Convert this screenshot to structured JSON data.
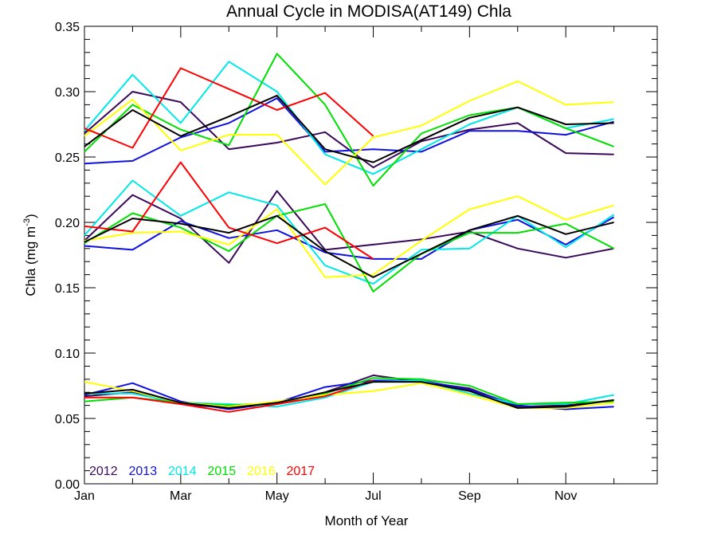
{
  "chart_data": {
    "type": "line",
    "title": "Annual Cycle in MODISA(AT149) Chla",
    "xlabel": "Month of Year",
    "ylabel": "Chla (mg m",
    "ylabel_sup": "-3",
    "ylabel_suffix": ")",
    "x": [
      0,
      1,
      2,
      3,
      4,
      5,
      6,
      7,
      8,
      9,
      10,
      11
    ],
    "xlim": [
      0,
      11.9
    ],
    "ylim": [
      0,
      0.35
    ],
    "x_ticks": [
      {
        "value": 0,
        "label": "Jan"
      },
      {
        "value": 2,
        "label": "Mar"
      },
      {
        "value": 4,
        "label": "May"
      },
      {
        "value": 6,
        "label": "Jul"
      },
      {
        "value": 8,
        "label": "Sep"
      },
      {
        "value": 10,
        "label": "Nov"
      }
    ],
    "x_minor_ticks": [
      1,
      3,
      5,
      7,
      9,
      11
    ],
    "y_ticks": [
      {
        "value": 0.0,
        "label": "0.00"
      },
      {
        "value": 0.05,
        "label": "0.05"
      },
      {
        "value": 0.1,
        "label": "0.10"
      },
      {
        "value": 0.15,
        "label": "0.15"
      },
      {
        "value": 0.2,
        "label": "0.20"
      },
      {
        "value": 0.25,
        "label": "0.25"
      },
      {
        "value": 0.3,
        "label": "0.30"
      },
      {
        "value": 0.35,
        "label": "0.35"
      }
    ],
    "y_minor_step": 0.01,
    "grid": false,
    "legend_position": "bottom-left",
    "groups": [
      {
        "series": [
          {
            "name": "2012",
            "color": "#3a0a5a",
            "values": [
              0.268,
              0.3,
              0.292,
              0.256,
              0.261,
              0.269,
              0.242,
              0.262,
              0.271,
              0.276,
              0.253,
              0.252
            ]
          },
          {
            "name": "2013",
            "color": "#1010e0",
            "values": [
              0.245,
              0.247,
              0.265,
              0.276,
              0.295,
              0.254,
              0.256,
              0.254,
              0.27,
              0.27,
              0.267,
              0.277
            ]
          },
          {
            "name": "2014",
            "color": "#00e8e8",
            "values": [
              0.27,
              0.313,
              0.276,
              0.323,
              0.3,
              0.252,
              0.237,
              0.256,
              0.275,
              0.288,
              0.272,
              0.279
            ]
          },
          {
            "name": "2015",
            "color": "#00e000",
            "values": [
              0.254,
              0.29,
              0.271,
              0.259,
              0.329,
              0.29,
              0.228,
              0.268,
              0.282,
              0.288,
              0.272,
              0.258
            ]
          },
          {
            "name": "2016",
            "color": "#ffff00",
            "values": [
              0.266,
              0.294,
              0.255,
              0.267,
              0.267,
              0.229,
              0.265,
              0.274,
              0.293,
              0.308,
              0.29,
              0.292
            ]
          },
          {
            "name": "2017",
            "color": "#ff0000",
            "values": [
              0.272,
              0.257,
              0.318,
              0.302,
              0.286,
              0.299,
              0.266,
              null,
              null,
              null,
              null,
              null
            ]
          },
          {
            "name": "",
            "color": "#000000",
            "values": [
              0.258,
              0.286,
              0.266,
              0.281,
              0.297,
              0.256,
              0.246,
              0.263,
              0.28,
              0.288,
              0.275,
              0.276
            ]
          }
        ]
      },
      {
        "series": [
          {
            "name": "2012",
            "color": "#3a0a5a",
            "values": [
              0.186,
              0.221,
              0.203,
              0.169,
              0.224,
              0.179,
              0.183,
              0.187,
              0.193,
              0.18,
              0.173,
              0.18
            ]
          },
          {
            "name": "2013",
            "color": "#1010e0",
            "values": [
              0.182,
              0.179,
              0.201,
              0.188,
              0.194,
              0.177,
              0.172,
              0.172,
              0.194,
              0.202,
              0.183,
              0.204
            ]
          },
          {
            "name": "2014",
            "color": "#00e8e8",
            "values": [
              0.19,
              0.232,
              0.205,
              0.223,
              0.213,
              0.167,
              0.153,
              0.179,
              0.18,
              0.205,
              0.181,
              0.206
            ]
          },
          {
            "name": "2015",
            "color": "#00e000",
            "values": [
              0.184,
              0.207,
              0.196,
              0.178,
              0.205,
              0.214,
              0.147,
              0.176,
              0.192,
              0.192,
              0.199,
              0.18
            ]
          },
          {
            "name": "2016",
            "color": "#ffff00",
            "values": [
              0.186,
              0.192,
              0.193,
              0.183,
              0.21,
              0.158,
              0.16,
              0.186,
              0.21,
              0.22,
              0.202,
              0.213
            ]
          },
          {
            "name": "2017",
            "color": "#ff0000",
            "values": [
              0.197,
              0.193,
              0.246,
              0.196,
              0.184,
              0.196,
              0.172,
              null,
              null,
              null,
              null,
              null
            ]
          },
          {
            "name": "",
            "color": "#000000",
            "values": [
              0.185,
              0.203,
              0.199,
              0.192,
              0.205,
              0.178,
              0.158,
              0.176,
              0.194,
              0.205,
              0.191,
              0.2
            ]
          }
        ]
      },
      {
        "series": [
          {
            "name": "2012",
            "color": "#3a0a5a",
            "values": [
              0.067,
              0.07,
              0.061,
              0.058,
              0.061,
              0.07,
              0.083,
              0.078,
              0.073,
              0.059,
              0.06,
              0.064
            ]
          },
          {
            "name": "2013",
            "color": "#1010e0",
            "values": [
              0.068,
              0.077,
              0.063,
              0.057,
              0.062,
              0.074,
              0.079,
              0.079,
              0.072,
              0.06,
              0.057,
              0.059
            ]
          },
          {
            "name": "2014",
            "color": "#00e8e8",
            "values": [
              0.069,
              0.069,
              0.062,
              0.061,
              0.059,
              0.066,
              0.078,
              0.079,
              0.069,
              0.061,
              0.061,
              0.068
            ]
          },
          {
            "name": "2015",
            "color": "#00e000",
            "values": [
              0.063,
              0.066,
              0.062,
              0.06,
              0.062,
              0.069,
              0.081,
              0.08,
              0.075,
              0.061,
              0.062,
              0.063
            ]
          },
          {
            "name": "2016",
            "color": "#ffff00",
            "values": [
              0.078,
              0.071,
              0.062,
              0.059,
              0.063,
              0.068,
              0.071,
              0.077,
              0.068,
              0.058,
              0.058,
              0.062
            ]
          },
          {
            "name": "2017",
            "color": "#ff0000",
            "values": [
              0.066,
              0.066,
              0.061,
              0.055,
              0.061,
              0.067,
              0.079,
              null,
              null,
              null,
              null,
              null
            ]
          },
          {
            "name": "",
            "color": "#000000",
            "values": [
              0.069,
              0.072,
              0.062,
              0.058,
              0.062,
              0.07,
              0.078,
              0.078,
              0.071,
              0.058,
              0.059,
              0.064
            ]
          }
        ]
      }
    ],
    "legend": [
      {
        "name": "2012",
        "color": "#3a0a5a"
      },
      {
        "name": "2013",
        "color": "#1010e0"
      },
      {
        "name": "2014",
        "color": "#00e8e8"
      },
      {
        "name": "2015",
        "color": "#00e000"
      },
      {
        "name": "2016",
        "color": "#ffff00"
      },
      {
        "name": "2017",
        "color": "#ff0000"
      }
    ]
  }
}
